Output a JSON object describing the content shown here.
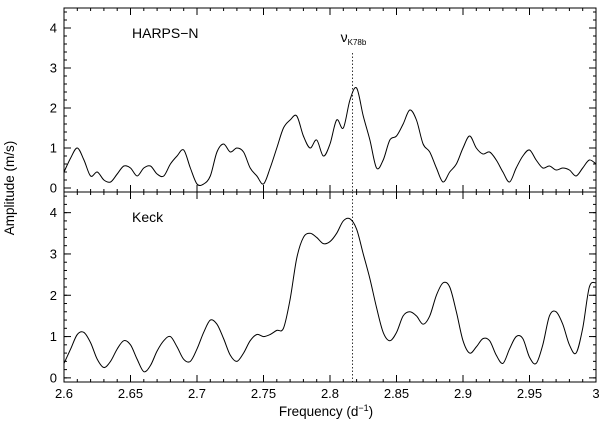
{
  "chart_data": {
    "type": "line",
    "xlabel": "Frequency (d",
    "xlabel_sup": "−1",
    "xlabel_end": ")",
    "ylabel": "Amplitude (m/s)",
    "xlim": [
      2.6,
      3.0
    ],
    "xticks": [
      "2.6",
      "2.65",
      "2.7",
      "2.75",
      "2.8",
      "2.85",
      "2.9",
      "2.95",
      "3"
    ],
    "xtick_values": [
      2.6,
      2.65,
      2.7,
      2.75,
      2.8,
      2.85,
      2.9,
      2.95,
      3.0
    ],
    "marker": {
      "x": 2.817,
      "label_main": "ν",
      "label_sub": "K78b"
    },
    "panels": [
      {
        "label": "HARPS−N",
        "ylim": [
          -0.1,
          4.5
        ],
        "yticks": [
          "0",
          "1",
          "2",
          "3",
          "4"
        ],
        "ytick_values": [
          0,
          1,
          2,
          3,
          4
        ],
        "x": [
          2.6,
          2.605,
          2.61,
          2.615,
          2.62,
          2.625,
          2.63,
          2.635,
          2.64,
          2.645,
          2.65,
          2.655,
          2.66,
          2.665,
          2.67,
          2.675,
          2.68,
          2.685,
          2.69,
          2.695,
          2.7,
          2.705,
          2.71,
          2.715,
          2.72,
          2.725,
          2.73,
          2.735,
          2.74,
          2.745,
          2.75,
          2.755,
          2.76,
          2.765,
          2.77,
          2.775,
          2.78,
          2.785,
          2.79,
          2.795,
          2.8,
          2.805,
          2.81,
          2.815,
          2.82,
          2.825,
          2.83,
          2.835,
          2.84,
          2.845,
          2.85,
          2.855,
          2.86,
          2.865,
          2.87,
          2.875,
          2.88,
          2.885,
          2.89,
          2.895,
          2.9,
          2.905,
          2.91,
          2.915,
          2.92,
          2.925,
          2.93,
          2.935,
          2.94,
          2.945,
          2.95,
          2.955,
          2.96,
          2.965,
          2.97,
          2.975,
          2.98,
          2.985,
          2.99,
          2.995,
          3.0
        ],
        "y": [
          0.4,
          0.75,
          1.0,
          0.7,
          0.3,
          0.4,
          0.2,
          0.15,
          0.35,
          0.55,
          0.5,
          0.3,
          0.5,
          0.55,
          0.35,
          0.3,
          0.6,
          0.8,
          0.95,
          0.5,
          0.1,
          0.1,
          0.3,
          0.9,
          1.1,
          0.9,
          1.0,
          0.9,
          0.5,
          0.3,
          0.1,
          0.5,
          1.0,
          1.5,
          1.7,
          1.8,
          1.3,
          1.0,
          1.2,
          0.8,
          1.1,
          1.7,
          1.5,
          2.2,
          2.5,
          1.8,
          1.2,
          0.5,
          0.7,
          1.2,
          1.3,
          1.6,
          1.95,
          1.7,
          1.1,
          0.9,
          0.5,
          0.15,
          0.4,
          0.6,
          1.0,
          1.3,
          1.0,
          0.85,
          0.9,
          0.7,
          0.4,
          0.15,
          0.5,
          0.8,
          0.95,
          0.7,
          0.5,
          0.55,
          0.45,
          0.5,
          0.45,
          0.3,
          0.5,
          0.7,
          0.6
        ]
      },
      {
        "label": "Keck",
        "ylim": [
          -0.1,
          4.5
        ],
        "yticks": [
          "0",
          "1",
          "2",
          "3",
          "4"
        ],
        "ytick_values": [
          0,
          1,
          2,
          3,
          4
        ],
        "x": [
          2.6,
          2.605,
          2.61,
          2.615,
          2.62,
          2.625,
          2.63,
          2.635,
          2.64,
          2.645,
          2.65,
          2.655,
          2.66,
          2.665,
          2.67,
          2.675,
          2.68,
          2.685,
          2.69,
          2.695,
          2.7,
          2.705,
          2.71,
          2.715,
          2.72,
          2.725,
          2.73,
          2.735,
          2.74,
          2.745,
          2.75,
          2.755,
          2.76,
          2.765,
          2.77,
          2.775,
          2.78,
          2.785,
          2.79,
          2.795,
          2.8,
          2.805,
          2.81,
          2.815,
          2.82,
          2.825,
          2.83,
          2.835,
          2.84,
          2.845,
          2.85,
          2.855,
          2.86,
          2.865,
          2.87,
          2.875,
          2.88,
          2.885,
          2.89,
          2.895,
          2.9,
          2.905,
          2.91,
          2.915,
          2.92,
          2.925,
          2.93,
          2.935,
          2.94,
          2.945,
          2.95,
          2.955,
          2.96,
          2.965,
          2.97,
          2.975,
          2.98,
          2.985,
          2.99,
          2.995,
          3.0
        ],
        "y": [
          0.35,
          0.7,
          1.05,
          1.1,
          0.85,
          0.45,
          0.25,
          0.4,
          0.7,
          0.9,
          0.8,
          0.45,
          0.15,
          0.3,
          0.65,
          0.9,
          1.0,
          0.75,
          0.45,
          0.4,
          0.7,
          1.1,
          1.4,
          1.3,
          0.95,
          0.55,
          0.4,
          0.6,
          0.9,
          1.05,
          1.0,
          1.05,
          1.15,
          1.2,
          1.9,
          2.9,
          3.4,
          3.5,
          3.4,
          3.25,
          3.3,
          3.5,
          3.8,
          3.85,
          3.6,
          3.0,
          2.4,
          1.7,
          1.1,
          0.9,
          1.1,
          1.5,
          1.6,
          1.5,
          1.3,
          1.5,
          2.0,
          2.3,
          2.2,
          1.6,
          0.9,
          0.6,
          0.75,
          0.95,
          0.9,
          0.55,
          0.35,
          0.7,
          1.0,
          0.95,
          0.5,
          0.35,
          0.8,
          1.5,
          1.6,
          1.3,
          0.8,
          0.6,
          1.2,
          2.2,
          2.3
        ]
      }
    ]
  }
}
